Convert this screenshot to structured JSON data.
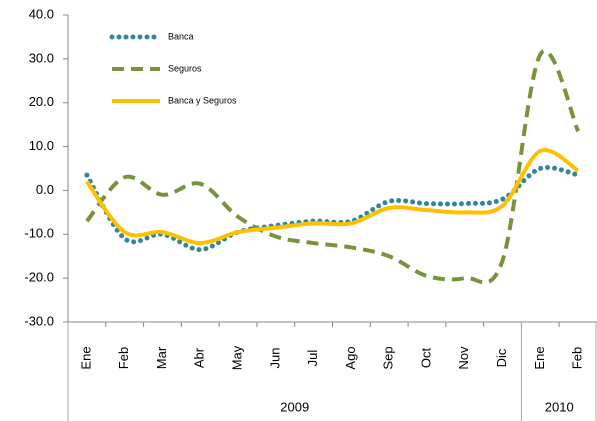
{
  "chart_data": {
    "type": "line",
    "groups": [
      {
        "name": "2009",
        "categories": [
          "Ene",
          "Feb",
          "Mar",
          "Abr",
          "May",
          "Jun",
          "Jul",
          "Ago",
          "Sep",
          "Oct",
          "Nov",
          "Dic"
        ]
      },
      {
        "name": "2010",
        "categories": [
          "Ene",
          "Feb"
        ]
      }
    ],
    "series": [
      {
        "name": "Banca",
        "color": "#31859c",
        "style": "dotted",
        "values": [
          3.5,
          -11,
          -10,
          -13.5,
          -9.5,
          -8,
          -7,
          -7,
          -2.5,
          -3,
          -3,
          -2,
          5,
          3.5
        ]
      },
      {
        "name": "Seguros",
        "color": "#77933c",
        "style": "dashed",
        "values": [
          -7,
          3,
          -1,
          1.5,
          -6,
          -10.5,
          -12,
          -13,
          -15,
          -19.5,
          -20,
          -16,
          31,
          13.5
        ]
      },
      {
        "name": "Banca y Seguros",
        "color": "#ffc000",
        "style": "solid",
        "values": [
          2,
          -9.5,
          -9.5,
          -12,
          -9.5,
          -8.5,
          -7.5,
          -7.5,
          -4,
          -4.5,
          -5,
          -3.5,
          9,
          4.5
        ]
      }
    ],
    "ylim": [
      -30,
      40
    ],
    "yticks": [
      {
        "value": -30,
        "label": "-30.0"
      },
      {
        "value": -20,
        "label": "-20.0"
      },
      {
        "value": -10,
        "label": "-10.0"
      },
      {
        "value": 0,
        "label": "0.0"
      },
      {
        "value": 10,
        "label": "10.0"
      },
      {
        "value": 20,
        "label": "20.0"
      },
      {
        "value": 30,
        "label": "30.0"
      },
      {
        "value": 40,
        "label": "40.0"
      }
    ],
    "grid": false,
    "legend": "top-left"
  }
}
